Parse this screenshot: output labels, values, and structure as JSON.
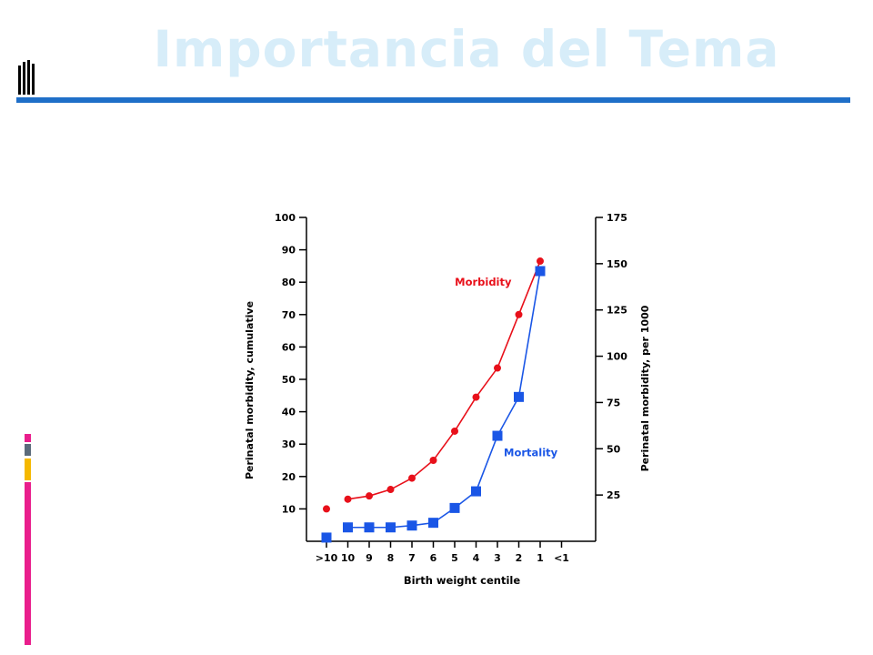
{
  "slide": {
    "title": "Importancia del Tema",
    "accent_color": "#1f6fc8",
    "title_color": "#d7edf9",
    "left_bar_colors": [
      "#e91e8c",
      "#5b6b7b",
      "#f5b800",
      "#e91e8c"
    ]
  },
  "chart_data": {
    "type": "line",
    "xlabel": "Birth weight centile",
    "ylabel_left": "Perinatal morbidity, cumulative",
    "ylabel_right": "Perinatal morbidity, per 1000",
    "categories": [
      ">10",
      "10",
      "9",
      "8",
      "7",
      "6",
      "5",
      "4",
      "3",
      "2",
      "1",
      "<1"
    ],
    "yleft_ticks": [
      10,
      20,
      30,
      40,
      50,
      60,
      70,
      80,
      90,
      100
    ],
    "yright_ticks": [
      25,
      50,
      75,
      100,
      125,
      150,
      175
    ],
    "yleft_range": [
      0,
      100
    ],
    "yright_range": [
      0,
      175
    ],
    "series": [
      {
        "name": "Morbidity",
        "axis": "left",
        "color": "#e8101a",
        "marker": "circle",
        "values": [
          10,
          13,
          14,
          16,
          19.5,
          25,
          34,
          44.5,
          53.5,
          70,
          86.5,
          null
        ],
        "connect_from_index": 1
      },
      {
        "name": "Mortality",
        "axis": "right",
        "color": "#1a56e6",
        "marker": "square",
        "values": [
          2,
          7.5,
          7.5,
          7.5,
          8.5,
          10,
          18,
          27,
          57,
          78,
          146,
          null
        ],
        "connect_from_index": 1
      }
    ],
    "grid": false
  }
}
